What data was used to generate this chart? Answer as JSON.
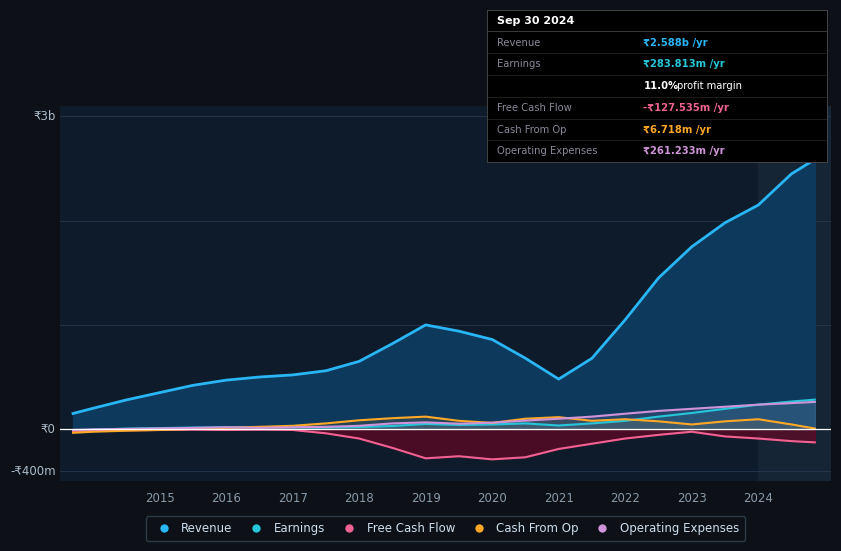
{
  "bg_color": "#0d1117",
  "plot_bg_color": "#0d1b2a",
  "grid_color": "#263850",
  "zero_line_color": "#ffffff",
  "ylabel_top": "₹3b",
  "ylabel_zero": "₹0",
  "ylabel_bottom": "-₹400m",
  "xticklabels": [
    "2015",
    "2016",
    "2017",
    "2018",
    "2019",
    "2020",
    "2021",
    "2022",
    "2023",
    "2024"
  ],
  "years": [
    2013.7,
    2014.0,
    2014.5,
    2015.0,
    2015.5,
    2016.0,
    2016.5,
    2017.0,
    2017.5,
    2018.0,
    2018.5,
    2019.0,
    2019.5,
    2020.0,
    2020.5,
    2021.0,
    2021.5,
    2022.0,
    2022.5,
    2023.0,
    2023.5,
    2024.0,
    2024.5,
    2024.85
  ],
  "revenue": [
    150,
    200,
    280,
    350,
    420,
    470,
    500,
    520,
    560,
    650,
    820,
    1000,
    940,
    860,
    680,
    480,
    680,
    1050,
    1450,
    1750,
    1980,
    2150,
    2450,
    2588
  ],
  "earnings": [
    -15,
    -5,
    5,
    10,
    15,
    18,
    20,
    18,
    15,
    20,
    30,
    50,
    40,
    45,
    55,
    35,
    55,
    80,
    120,
    155,
    195,
    235,
    265,
    283
  ],
  "free_cash_flow": [
    -25,
    -15,
    -10,
    -8,
    -5,
    -8,
    -5,
    -8,
    -40,
    -90,
    -180,
    -280,
    -260,
    -290,
    -270,
    -190,
    -140,
    -90,
    -55,
    -25,
    -70,
    -90,
    -115,
    -127
  ],
  "cash_from_op": [
    -35,
    -25,
    -15,
    -8,
    2,
    12,
    22,
    32,
    55,
    85,
    105,
    120,
    80,
    60,
    100,
    115,
    80,
    95,
    75,
    45,
    75,
    95,
    45,
    6
  ],
  "operating_expenses": [
    -8,
    -3,
    2,
    7,
    12,
    18,
    12,
    18,
    22,
    32,
    55,
    65,
    52,
    62,
    82,
    100,
    120,
    148,
    175,
    195,
    215,
    235,
    250,
    261
  ],
  "revenue_color": "#29b6f6",
  "earnings_color": "#26c6da",
  "free_cash_flow_color": "#f06292",
  "cash_from_op_color": "#ffa726",
  "operating_expenses_color": "#ce93d8",
  "revenue_fill_color": "#0d3a5c",
  "ylim": [
    -500,
    3100
  ],
  "xlim": [
    2013.5,
    2025.1
  ],
  "legend_labels": [
    "Revenue",
    "Earnings",
    "Free Cash Flow",
    "Cash From Op",
    "Operating Expenses"
  ],
  "legend_colors": [
    "#29b6f6",
    "#26c6da",
    "#f06292",
    "#ffa726",
    "#ce93d8"
  ],
  "info_box": {
    "date": "Sep 30 2024",
    "rows": [
      {
        "label": "Revenue",
        "value": "₹2.588b /yr",
        "value_color": "#29b6f6"
      },
      {
        "label": "Earnings",
        "value": "₹283.813m /yr",
        "value_color": "#26c6da"
      },
      {
        "label": "",
        "value": "11.0% profit margin",
        "value_color": "#ffffff"
      },
      {
        "label": "Free Cash Flow",
        "value": "-₹127.535m /yr",
        "value_color": "#f06292"
      },
      {
        "label": "Cash From Op",
        "value": "₹6.718m /yr",
        "value_color": "#ffa726"
      },
      {
        "label": "Operating Expenses",
        "value": "₹261.233m /yr",
        "value_color": "#ce93d8"
      }
    ]
  }
}
